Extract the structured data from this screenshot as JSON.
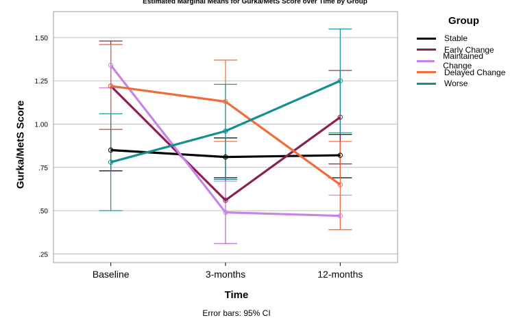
{
  "chart_data": {
    "type": "line",
    "title": "Estimated Marginal Means for Gurka/MetS Score over Time by Group",
    "xlabel": "Time",
    "ylabel": "Gurka/MetS Score",
    "categories": [
      "Baseline",
      "3-months",
      "12-months"
    ],
    "ylim": [
      0.2,
      1.65
    ],
    "yticks": [
      0.25,
      0.5,
      0.75,
      1.0,
      1.25,
      1.5
    ],
    "ytick_labels": [
      ".25",
      ".50",
      ".75",
      "1.00",
      "1.25",
      "1.50"
    ],
    "grid": true,
    "legend_title": "Group",
    "legend_position": "top-right",
    "footnote": "Error bars: 95% CI",
    "series": [
      {
        "name": "Stable",
        "color": "#000000",
        "values": [
          0.85,
          0.81,
          0.82
        ],
        "ci_low": [
          0.73,
          0.69,
          0.69
        ],
        "ci_high": [
          0.97,
          0.92,
          0.94
        ]
      },
      {
        "name": "Early Change",
        "color": "#8b1f52",
        "values": [
          1.22,
          0.56,
          1.04
        ],
        "ci_low": [
          0.97,
          0.31,
          0.77
        ],
        "ci_high": [
          1.48,
          0.81,
          1.31
        ]
      },
      {
        "name": "Maintained Change",
        "color": "#c683e8",
        "values": [
          1.34,
          0.49,
          0.47
        ],
        "ci_low": [
          1.21,
          0.31,
          0.39
        ],
        "ci_high": [
          1.46,
          0.67,
          0.59
        ]
      },
      {
        "name": "Delayed Change",
        "color": "#f26a38",
        "values": [
          1.22,
          1.13,
          0.65
        ],
        "ci_low": [
          0.97,
          0.9,
          0.39
        ],
        "ci_high": [
          1.46,
          1.37,
          0.9
        ]
      },
      {
        "name": "Worse",
        "color": "#138f94",
        "values": [
          0.78,
          0.96,
          1.25
        ],
        "ci_low": [
          0.5,
          0.68,
          0.95
        ],
        "ci_high": [
          1.06,
          1.23,
          1.55
        ]
      }
    ]
  }
}
